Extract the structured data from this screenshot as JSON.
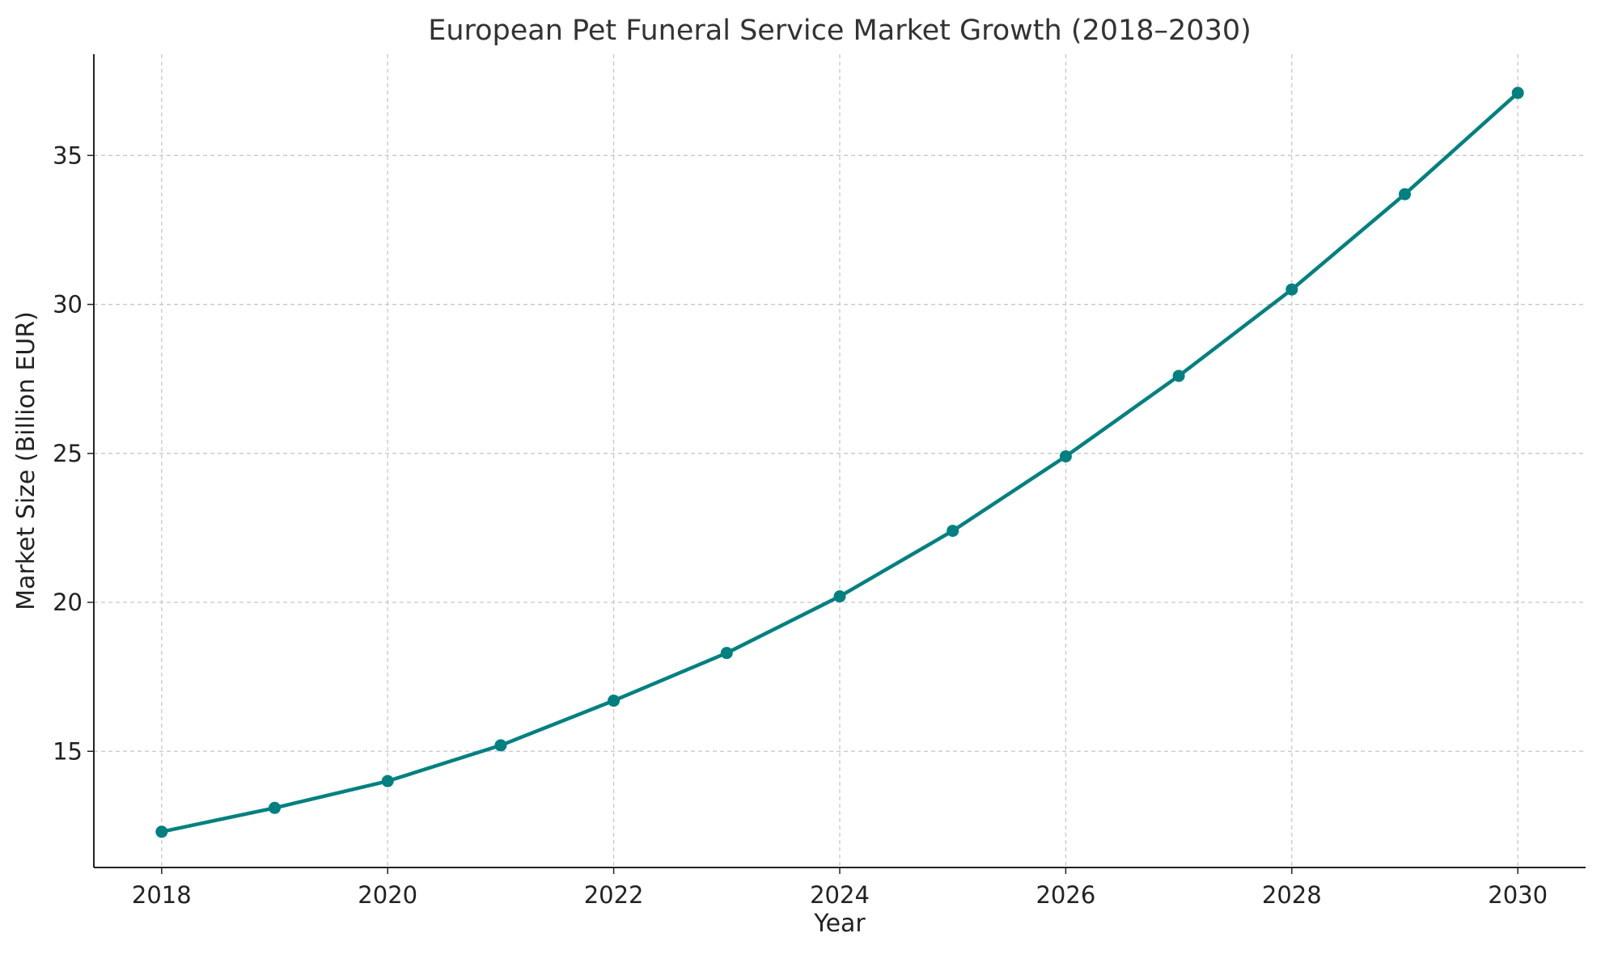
{
  "chart_data": {
    "type": "line",
    "title": "European Pet Funeral Service Market Growth (2018–2030)",
    "xlabel": "Year",
    "ylabel": "Market Size (Billion EUR)",
    "x": [
      2018,
      2019,
      2020,
      2021,
      2022,
      2023,
      2024,
      2025,
      2026,
      2027,
      2028,
      2029,
      2030
    ],
    "series": [
      {
        "values": [
          12.3,
          13.1,
          14.0,
          15.2,
          16.7,
          18.3,
          20.2,
          22.4,
          24.9,
          27.6,
          30.5,
          33.7,
          37.1
        ],
        "color": "#008080",
        "marker": "circle"
      }
    ],
    "xticks": [
      2018,
      2020,
      2022,
      2024,
      2026,
      2028,
      2030
    ],
    "yticks": [
      15,
      20,
      25,
      30,
      35
    ],
    "xlim": [
      2017.4,
      2030.6
    ],
    "ylim": [
      11.1,
      38.4
    ],
    "grid": true,
    "grid_style": "dashed",
    "legend": "none"
  }
}
